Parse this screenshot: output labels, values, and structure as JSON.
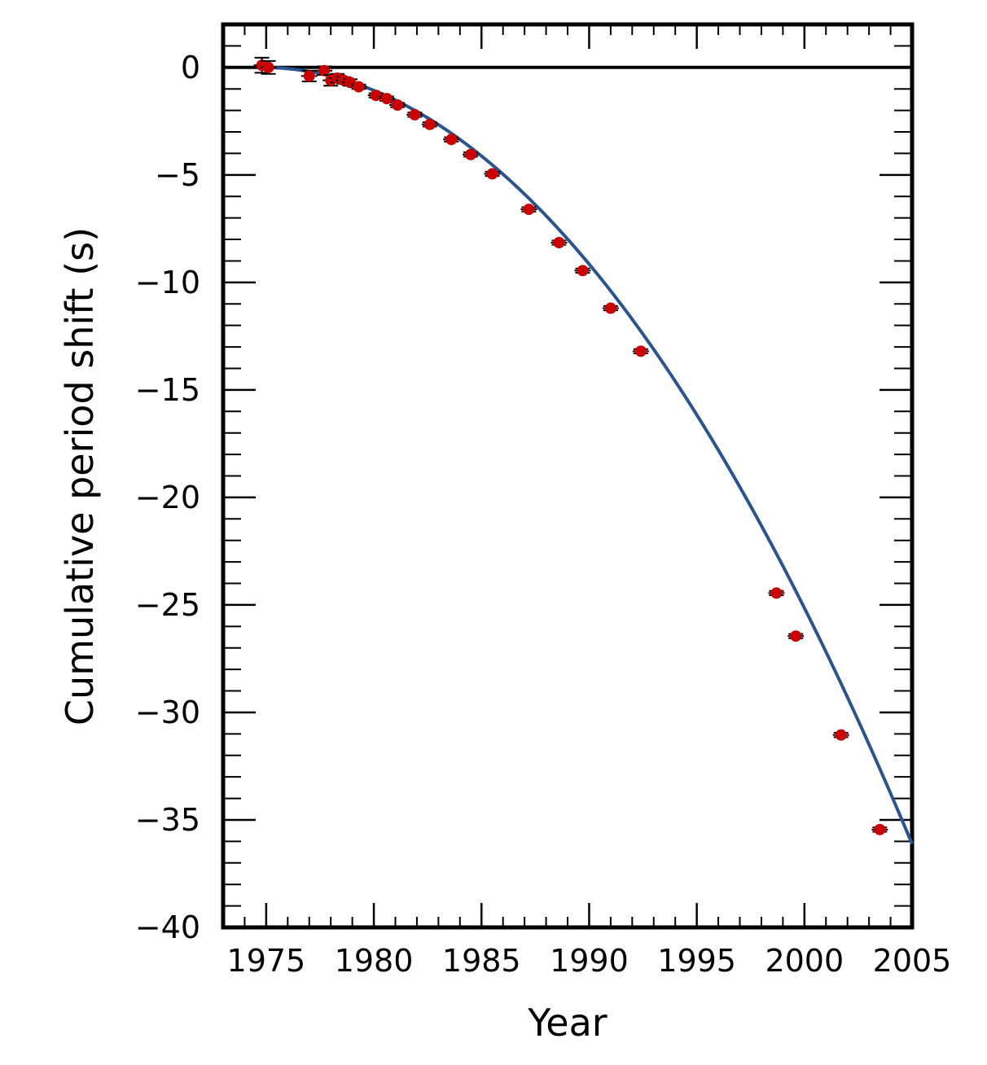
{
  "chart_data": {
    "type": "scatter",
    "title": "",
    "xlabel": "Year",
    "ylabel": "Cumulative period shift (s)",
    "xlim": [
      1973,
      2005
    ],
    "ylim": [
      -40,
      2
    ],
    "x_ticks": [
      1975,
      1980,
      1985,
      1990,
      1995,
      2000,
      2005
    ],
    "y_ticks": [
      0,
      -5,
      -10,
      -15,
      -20,
      -25,
      -30,
      -35,
      -40
    ],
    "x_tick_labels": [
      "1975",
      "1980",
      "1985",
      "1990",
      "1995",
      "2000",
      "2005"
    ],
    "y_tick_labels": [
      "0",
      "−5",
      "−10",
      "−15",
      "−20",
      "−25",
      "−30",
      "−35",
      "−40"
    ],
    "grid": false,
    "legend": "none",
    "zero_line": true,
    "series": [
      {
        "kind": "points",
        "color": "#cc0000",
        "x": [
          1974.8,
          1975.1,
          1977.0,
          1977.7,
          1978.0,
          1978.3,
          1978.6,
          1978.9,
          1979.3,
          1980.1,
          1980.6,
          1981.1,
          1981.9,
          1982.6,
          1983.6,
          1984.5,
          1985.5,
          1987.2,
          1988.6,
          1989.7,
          1991.0,
          1992.4,
          1998.7,
          1999.6,
          2001.7,
          2003.5
        ],
        "y": [
          0.1,
          0.0,
          -0.4,
          -0.15,
          -0.6,
          -0.5,
          -0.6,
          -0.7,
          -0.9,
          -1.3,
          -1.45,
          -1.75,
          -2.2,
          -2.65,
          -3.35,
          -4.05,
          -4.95,
          -6.6,
          -8.15,
          -9.45,
          -11.2,
          -13.2,
          -24.45,
          -26.45,
          -31.05,
          -35.45
        ],
        "yerr": [
          0.35,
          0.3,
          0.25,
          0.2,
          0.25,
          0.2,
          0.15,
          0.15,
          0.1,
          0.1,
          0.1,
          0.1,
          0.1,
          0.1,
          0.1,
          0.1,
          0.1,
          0.1,
          0.1,
          0.1,
          0.1,
          0.1,
          0.1,
          0.1,
          0.1,
          0.1
        ]
      },
      {
        "kind": "curve",
        "color": "#2a5490",
        "model": "quadratic",
        "t0": 1974.8,
        "coeff": -0.0396,
        "x_range": [
          1974.8,
          2005
        ]
      }
    ]
  }
}
